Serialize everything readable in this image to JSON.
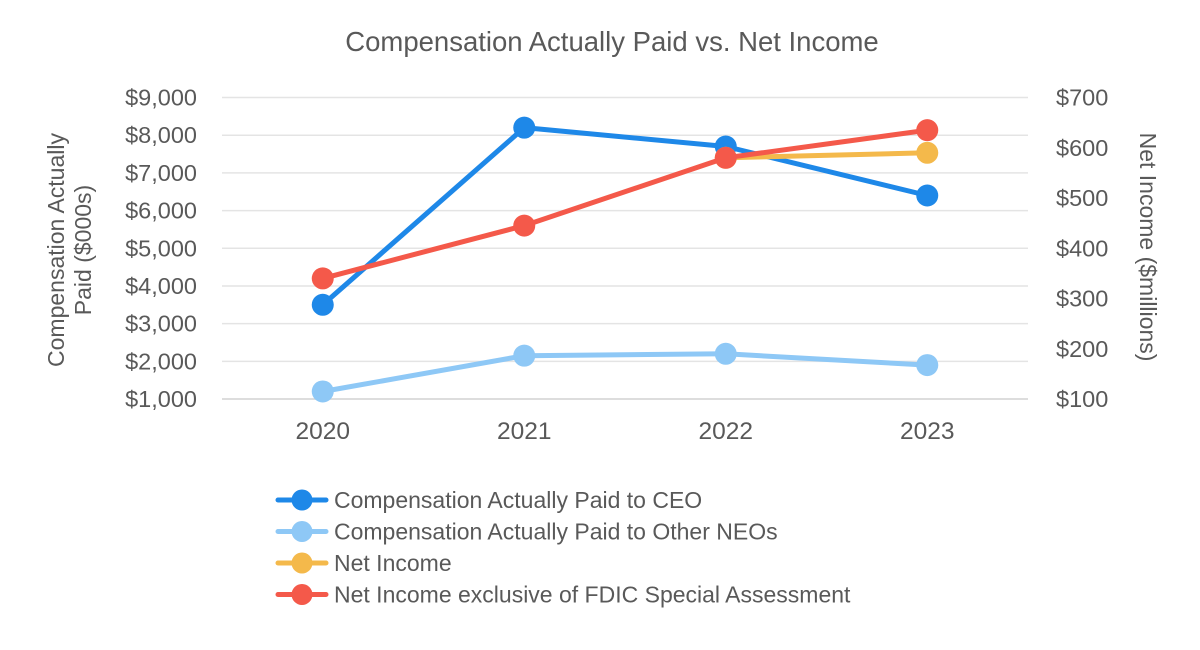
{
  "chart_data": {
    "type": "line",
    "title": "Compensation Actually Paid vs. Net Income",
    "categories": [
      "2020",
      "2021",
      "2022",
      "2023"
    ],
    "axes": {
      "left": {
        "label_lines": [
          "Compensation Actually",
          "Paid ($000s)"
        ],
        "min": 1000,
        "max": 9000,
        "step": 1000,
        "ticks": [
          "$1,000",
          "$2,000",
          "$3,000",
          "$4,000",
          "$5,000",
          "$6,000",
          "$7,000",
          "$8,000",
          "$9,000"
        ]
      },
      "right": {
        "label": "Net Income ($millions)",
        "min": 100,
        "max": 700,
        "step": 100,
        "ticks": [
          "$100",
          "$200",
          "$300",
          "$400",
          "$500",
          "$600",
          "$700"
        ]
      }
    },
    "series": [
      {
        "name": "Compensation Actually Paid to CEO",
        "axis": "left",
        "color": "#1e88e8",
        "values": [
          3500,
          8200,
          7700,
          6400
        ]
      },
      {
        "name": "Compensation Actually Paid to Other NEOs",
        "axis": "left",
        "color": "#8ec8f6",
        "values": [
          1200,
          2150,
          2200,
          1900
        ]
      },
      {
        "name": "Net Income",
        "axis": "right",
        "color": "#f4b94b",
        "values": [
          null,
          null,
          580,
          590
        ]
      },
      {
        "name": "Net Income exclusive of FDIC Special Assessment",
        "axis": "right",
        "color": "#f4594a",
        "values": [
          340,
          445,
          580,
          635
        ]
      }
    ],
    "legend_position": "bottom-left",
    "grid": true,
    "text_color": "#595959",
    "gridline_color": "#e4e4e4",
    "baseline_color": "#d2d2d2"
  }
}
